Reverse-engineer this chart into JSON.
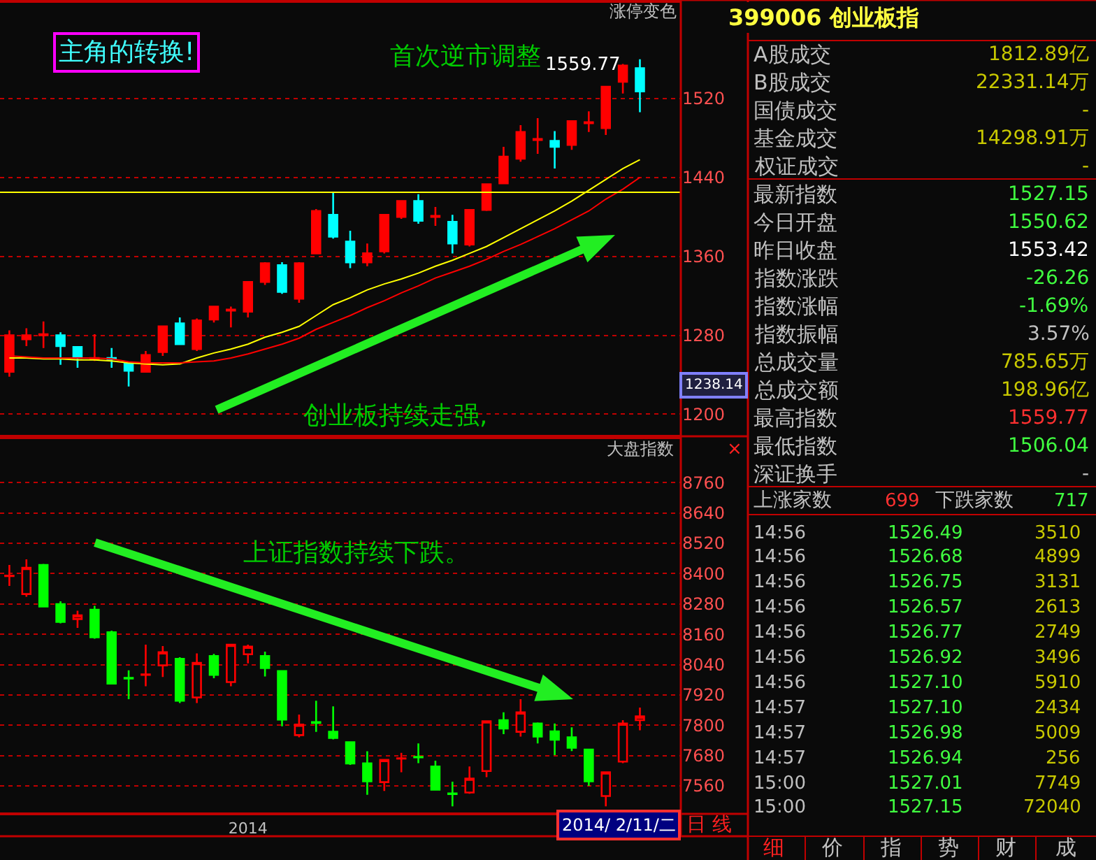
{
  "chart_data": [
    {
      "type": "candlestick",
      "categories": [
        null,
        null,
        null,
        null,
        null,
        null,
        null,
        null,
        null,
        null,
        null,
        null,
        null,
        null,
        null,
        null,
        null,
        null,
        null,
        null,
        null,
        null,
        null,
        null,
        null,
        null,
        null,
        null,
        null,
        null,
        null,
        null,
        null,
        null,
        null,
        null,
        null,
        null
      ],
      "ohlc": [
        [
          1243,
          1285,
          1238,
          1280
        ],
        [
          1276,
          1287,
          1269,
          1280
        ],
        [
          1280,
          1294,
          1267,
          1281
        ],
        [
          1280,
          1283,
          1250,
          1269
        ],
        [
          1268,
          1268,
          1247,
          1257
        ],
        [
          1256,
          1281,
          1254,
          1257
        ],
        [
          1257,
          1267,
          1247,
          1256
        ],
        [
          1252,
          1252,
          1228,
          1244
        ],
        [
          1243,
          1264,
          1242,
          1260
        ],
        [
          1263,
          1289,
          1259,
          1289
        ],
        [
          1292,
          1298,
          1270,
          1271
        ],
        [
          1266,
          1297,
          1264,
          1295
        ],
        [
          1296,
          1309,
          1293,
          1309
        ],
        [
          1305,
          1309,
          1288,
          1306
        ],
        [
          1304,
          1334,
          1298,
          1334
        ],
        [
          1334,
          1354,
          1331,
          1353
        ],
        [
          1351,
          1354,
          1322,
          1324
        ],
        [
          1317,
          1354,
          1313,
          1353
        ],
        [
          1363,
          1408,
          1362,
          1406
        ],
        [
          1402,
          1425,
          1378,
          1380
        ],
        [
          1375,
          1386,
          1348,
          1354
        ],
        [
          1354,
          1373,
          1350,
          1363
        ],
        [
          1365,
          1403,
          1363,
          1402
        ],
        [
          1400,
          1416,
          1398,
          1416
        ],
        [
          1416,
          1423,
          1393,
          1396
        ],
        [
          1400,
          1410,
          1391,
          1401
        ],
        [
          1395,
          1402,
          1363,
          1373
        ],
        [
          1372,
          1407,
          1370,
          1407
        ],
        [
          1407,
          1433,
          1406,
          1433
        ],
        [
          1434,
          1471,
          1433,
          1461
        ],
        [
          1459,
          1493,
          1456,
          1486
        ],
        [
          1478,
          1500,
          1464,
          1479
        ],
        [
          1477,
          1487,
          1449,
          1471
        ],
        [
          1473,
          1497,
          1468,
          1497
        ],
        [
          1495,
          1507,
          1486,
          1496
        ],
        [
          1490,
          1532,
          1483,
          1532
        ],
        [
          1537,
          1555,
          1525,
          1553.42
        ],
        [
          1550.62,
          1559.77,
          1506.04,
          1527.15
        ]
      ],
      "colors": [
        "#ff0000",
        "#ff0000",
        "#ff0000",
        "#00ffff",
        "#00ffff",
        "#ff0000",
        "#00ffff",
        "#00ffff",
        "#ff0000",
        "#ff0000",
        "#00ffff",
        "#ff0000",
        "#ff0000",
        "#ff0000",
        "#ff0000",
        "#ff0000",
        "#00ffff",
        "#ff0000",
        "#ff0000",
        "#00ffff",
        "#00ffff",
        "#ff0000",
        "#ff0000",
        "#ff0000",
        "#00ffff",
        "#ff0000",
        "#00ffff",
        "#ff0000",
        "#ff0000",
        "#ff0000",
        "#ff0000",
        "#ff0000",
        "#00ffff",
        "#ff0000",
        "#ff0000",
        "#ff0000",
        "#ff0000",
        "#00ffff"
      ],
      "series": [
        {
          "type": "line",
          "color": "#ffff00",
          "values": [
            1257,
            1257,
            1256,
            1256,
            1255,
            1255,
            1254,
            1252,
            1251,
            1250,
            1251,
            1257,
            1262,
            1266,
            1271,
            1278,
            1283,
            1289,
            1300,
            1311,
            1318,
            1326,
            1332,
            1337,
            1343,
            1350,
            1356,
            1363,
            1370,
            1379,
            1388,
            1397,
            1406,
            1416,
            1427,
            1438,
            1449,
            1458
          ]
        },
        {
          "type": "line",
          "color": "#ff0000",
          "values": [
            1259,
            1258,
            1257,
            1257,
            1257,
            1257,
            1256,
            1253,
            1252,
            1252,
            1252,
            1253,
            1254,
            1257,
            1261,
            1266,
            1271,
            1277,
            1286,
            1293,
            1300,
            1308,
            1315,
            1323,
            1330,
            1338,
            1344,
            1350,
            1357,
            1365,
            1372,
            1380,
            1388,
            1397,
            1406,
            1418,
            1428,
            1440
          ]
        }
      ],
      "ylim": [
        1179,
        1617
      ],
      "yticks": [
        1200,
        1280,
        1360,
        1440,
        1520
      ],
      "grid": "y",
      "legend": false,
      "tick_labels": "y",
      "ref_lines": [
        {
          "axis": "y",
          "value": 1425,
          "color": "#ffff00"
        }
      ],
      "annotations": [
        "主角的转换!",
        "首次逆市调整",
        "1559.77",
        "创业板持续走强,",
        "涨停变色",
        "1238.14"
      ]
    },
    {
      "type": "candlestick",
      "categories": [
        null,
        null,
        null,
        null,
        null,
        null,
        null,
        null,
        null,
        null,
        null,
        null,
        null,
        null,
        "2014",
        null,
        null,
        null,
        null,
        null,
        null,
        null,
        null,
        null,
        null,
        null,
        null,
        null,
        null,
        null,
        null,
        null,
        null,
        null,
        null,
        null,
        null,
        null
      ],
      "ohlc": [
        [
          8390,
          8434,
          8351,
          8392
        ],
        [
          8319,
          8456,
          8308,
          8423
        ],
        [
          8434,
          8438,
          8270,
          8270
        ],
        [
          8279,
          8290,
          8203,
          8209
        ],
        [
          8220,
          8253,
          8185,
          8235
        ],
        [
          8257,
          8272,
          8142,
          8148
        ],
        [
          8168,
          8174,
          7965,
          7965
        ],
        [
          7987,
          8017,
          7903,
          7985
        ],
        [
          7999,
          8119,
          7954,
          8001
        ],
        [
          8037,
          8113,
          7991,
          8089
        ],
        [
          8063,
          8069,
          7888,
          7897
        ],
        [
          7910,
          8084,
          7888,
          8047
        ],
        [
          8074,
          8082,
          7986,
          7999
        ],
        [
          7971,
          8119,
          7954,
          8119
        ],
        [
          8081,
          8119,
          8045,
          8111
        ],
        [
          8074,
          8091,
          7993,
          8026
        ],
        [
          8014,
          8014,
          7796,
          7822
        ],
        [
          7761,
          7842,
          7752,
          7803
        ],
        [
          7812,
          7897,
          7774,
          7809
        ],
        [
          7774,
          7875,
          7744,
          7750
        ],
        [
          7733,
          7733,
          7643,
          7649
        ],
        [
          7649,
          7697,
          7525,
          7578
        ],
        [
          7575,
          7663,
          7540,
          7663
        ],
        [
          7668,
          7691,
          7614,
          7669
        ],
        [
          7675,
          7728,
          7650,
          7673
        ],
        [
          7637,
          7660,
          7545,
          7545
        ],
        [
          7530,
          7577,
          7479,
          7528
        ],
        [
          7534,
          7637,
          7529,
          7589
        ],
        [
          7619,
          7816,
          7595,
          7816
        ],
        [
          7820,
          7851,
          7765,
          7787
        ],
        [
          7774,
          7903,
          7755,
          7851
        ],
        [
          7807,
          7811,
          7728,
          7755
        ],
        [
          7776,
          7807,
          7682,
          7743
        ],
        [
          7752,
          7792,
          7698,
          7711
        ],
        [
          7704,
          7704,
          7560,
          7578
        ],
        [
          7520,
          7614,
          7479,
          7614
        ],
        [
          7656,
          7820,
          7650,
          7807
        ],
        [
          7820,
          7870,
          7780,
          7835
        ]
      ],
      "colors": [
        "#ff0000",
        "#ff0000",
        "#00ff00",
        "#00ff00",
        "#ff0000",
        "#00ff00",
        "#00ff00",
        "#00ff00",
        "#ff0000",
        "#ff0000",
        "#00ff00",
        "#ff0000",
        "#00ff00",
        "#ff0000",
        "#ff0000",
        "#00ff00",
        "#00ff00",
        "#ff0000",
        "#00ff00",
        "#00ff00",
        "#00ff00",
        "#00ff00",
        "#ff0000",
        "#ff0000",
        "#00ff00",
        "#00ff00",
        "#00ff00",
        "#ff0000",
        "#ff0000",
        "#00ff00",
        "#ff0000",
        "#00ff00",
        "#00ff00",
        "#00ff00",
        "#00ff00",
        "#ff0000",
        "#ff0000",
        "#ff0000"
      ],
      "ylim": [
        7455,
        8932
      ],
      "yticks": [
        7560,
        7680,
        7800,
        7920,
        8040,
        8160,
        8280,
        8400,
        8520,
        8640,
        8760
      ],
      "grid": "y",
      "legend": false,
      "annotations": [
        "大盘指数",
        "×",
        "上证指数持续下跌。",
        "2014/ 2/11/二",
        "日 线"
      ]
    },
    {
      "type": "other",
      "title": "399006 创业板指",
      "annotations": [
        "A股成交",
        "1812.89亿",
        "B股成交",
        "22331.14万",
        "国债成交",
        "-",
        "基金成交",
        "14298.91万",
        "权证成交",
        "-",
        "最新指数",
        "1527.15",
        "今日开盘",
        "1550.62",
        "昨日收盘",
        "1553.42",
        "指数涨跌",
        "-26.26",
        "指数涨幅",
        "-1.69%",
        "指数振幅",
        "3.57%",
        "总成交量",
        "785.65万",
        "总成交额",
        "198.96亿",
        "最高指数",
        "1559.77",
        "最低指数",
        "1506.04",
        "深证换手",
        "-",
        "上涨家数",
        "699",
        "下跌家数",
        "717",
        "14:56",
        "1526.49",
        "3510",
        "14:56",
        "1526.68",
        "4899",
        "14:56",
        "1526.75",
        "3131",
        "14:56",
        "1526.57",
        "2613",
        "14:56",
        "1526.77",
        "2749",
        "14:56",
        "1526.92",
        "3496",
        "14:56",
        "1527.10",
        "5910",
        "14:57",
        "1527.10",
        "2434",
        "14:57",
        "1526.98",
        "5009",
        "14:57",
        "1526.94",
        "256",
        "15:00",
        "1527.01",
        "7749",
        "15:00",
        "1527.15",
        "72040",
        "细",
        "价",
        "指",
        "势",
        "财",
        "成"
      ]
    }
  ]
}
